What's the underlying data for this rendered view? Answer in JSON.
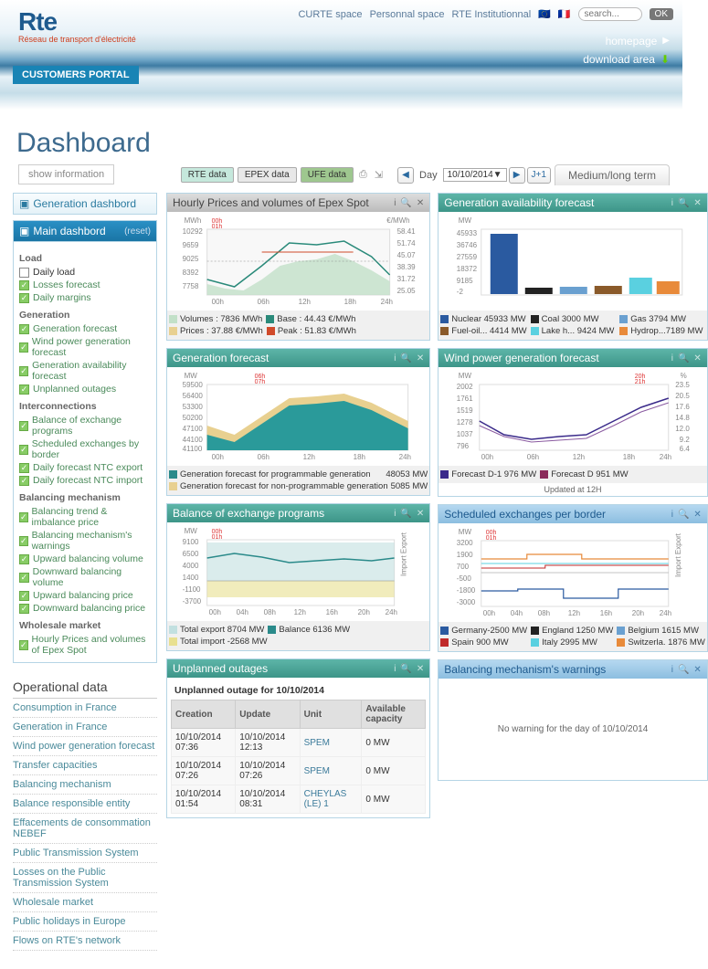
{
  "header": {
    "logo_main": "Rte",
    "logo_sub": "Réseau de transport d'électricité",
    "nav": {
      "curte": "CURTE space",
      "personal": "Personnal space",
      "inst": "RTE Institutionnal",
      "search_ph": "search...",
      "ok": "OK"
    },
    "links": {
      "home": "homepage",
      "download": "download area"
    },
    "portal": "CUSTOMERS PORTAL"
  },
  "title": "Dashboard",
  "show_info": "show information",
  "toolbar": {
    "rte": "RTE data",
    "epex": "EPEX data",
    "ufe": "UFE data",
    "day": "Day",
    "date": "10/10/2014",
    "j1": "J+1",
    "mlt": "Medium/long term"
  },
  "sidebar": {
    "gen_dash": "Generation dashbord",
    "main_dash": "Main dashbord",
    "reset": "(reset)",
    "groups": {
      "load": {
        "title": "Load",
        "items": [
          {
            "label": "Daily load",
            "on": false
          },
          {
            "label": "Losses forecast",
            "on": true
          },
          {
            "label": "Daily margins",
            "on": true
          }
        ]
      },
      "gen": {
        "title": "Generation",
        "items": [
          {
            "label": "Generation forecast",
            "on": true
          },
          {
            "label": "Wind power generation forecast",
            "on": true
          },
          {
            "label": "Generation availability forecast",
            "on": true
          },
          {
            "label": "Unplanned outages",
            "on": true
          }
        ]
      },
      "inter": {
        "title": "Interconnections",
        "items": [
          {
            "label": "Balance of exchange programs",
            "on": true
          },
          {
            "label": "Scheduled exchanges by border",
            "on": true
          },
          {
            "label": "Daily forecast NTC export",
            "on": true
          },
          {
            "label": "Daily forecast NTC import",
            "on": true
          }
        ]
      },
      "bal": {
        "title": "Balancing mechanism",
        "items": [
          {
            "label": "Balancing trend & imbalance price",
            "on": true
          },
          {
            "label": "Balancing mechanism's warnings",
            "on": true
          },
          {
            "label": "Upward balancing volume",
            "on": true
          },
          {
            "label": "Downward balancing volume",
            "on": true
          },
          {
            "label": "Upward balancing price",
            "on": true
          },
          {
            "label": "Downward balancing price",
            "on": true
          }
        ]
      },
      "whole": {
        "title": "Wholesale market",
        "items": [
          {
            "label": "Hourly Prices and volumes of Epex Spot",
            "on": true
          }
        ]
      }
    },
    "op_title": "Operational data",
    "op_links": [
      "Consumption in France",
      "Generation in France",
      "Wind power generation forecast",
      "Transfer capacities",
      "Balancing mechanism",
      "Balance responsible entity",
      "Effacements de consommation NEBEF",
      "Public Transmission System",
      "Losses on the Public Transmission System",
      "Wholesale market",
      "Public holidays in Europe",
      "Flows on RTE's network"
    ]
  },
  "widgets": {
    "epex": {
      "title": "Hourly Prices and volumes of Epex Spot",
      "y_unit_l": "MWh",
      "y_unit_r": "€/MWh",
      "yl": [
        10292,
        9659,
        9025,
        8392,
        7758
      ],
      "yr": [
        58.41,
        51.74,
        45.07,
        38.39,
        31.72,
        25.05
      ],
      "x": [
        "00h",
        "06h",
        "12h",
        "18h",
        "24h"
      ],
      "marker": "00h\n01h",
      "legend": [
        {
          "c": "#c2e0c8",
          "t": "Volumes : 7836 MWh"
        },
        {
          "c": "#2a8a7a",
          "t": "Base :   44.43 €/MWh"
        },
        {
          "c": "#e8d090",
          "t": "Prices :  37.88 €/MWh"
        },
        {
          "c": "#d04a2a",
          "t": "Peak :   51.83 €/MWh"
        }
      ]
    },
    "avail": {
      "title": "Generation availability forecast",
      "y_unit": "MW",
      "y": [
        45933,
        36746,
        27559,
        18372,
        9185,
        "-2"
      ],
      "legend": [
        {
          "c": "#2a5aa0",
          "t": "Nuclear 45933 MW"
        },
        {
          "c": "#222",
          "t": "Coal     3000 MW"
        },
        {
          "c": "#6aa0d0",
          "t": "Gas      3794 MW"
        },
        {
          "c": "#8a5a2a",
          "t": "Fuel-oil... 4414 MW"
        },
        {
          "c": "#5ad0e0",
          "t": "Lake h... 9424 MW"
        },
        {
          "c": "#e88a3a",
          "t": "Hydrop...7189 MW"
        }
      ]
    },
    "genfc": {
      "title": "Generation forecast",
      "y_unit": "MW",
      "marker": "06h\n07h",
      "y": [
        59500,
        56400,
        53300,
        50200,
        47100,
        44100,
        41100
      ],
      "x": [
        "00h",
        "06h",
        "12h",
        "18h",
        "24h"
      ],
      "legend": [
        {
          "c": "#2a8a8a",
          "t": "Generation forecast for programmable generation",
          "v": "48053 MW"
        },
        {
          "c": "#e8d090",
          "t": "Generation forecast for non-programmable generation",
          "v": "5085 MW"
        }
      ]
    },
    "wind": {
      "title": "Wind power generation forecast",
      "y_unit_l": "MW",
      "y_unit_r": "%",
      "marker": "20h\n21h",
      "yl": [
        2002,
        1761,
        1519,
        1278,
        1037,
        796
      ],
      "yr": [
        23.5,
        20.5,
        17.6,
        14.8,
        12.0,
        9.2,
        6.4
      ],
      "x": [
        "00h",
        "06h",
        "12h",
        "18h",
        "24h"
      ],
      "legend": [
        {
          "c": "#3a2a8a",
          "t": "Forecast D-1 976 MW"
        },
        {
          "c": "#8a2a5a",
          "t": "Forecast D 951 MW"
        }
      ],
      "updated": "Updated at 12H"
    },
    "balex": {
      "title": "Balance of exchange programs",
      "y_unit": "MW",
      "marker": "00h\n01h",
      "y": [
        9100,
        6500,
        4000,
        1400,
        -1100,
        -3700
      ],
      "x": [
        "00h",
        "04h",
        "08h",
        "12h",
        "16h",
        "20h",
        "24h"
      ],
      "legend": [
        {
          "c": "#c2e0e0",
          "t": "Total export 8704 MW"
        },
        {
          "c": "#2a8a8a",
          "t": "Balance 6136 MW"
        },
        {
          "c": "#e8e090",
          "t": "Total import -2568 MW"
        }
      ],
      "rlabel": "Import Export"
    },
    "sched": {
      "title": "Scheduled exchanges per border",
      "y_unit": "MW",
      "marker": "00h\n01h",
      "y": [
        3200,
        1900,
        700,
        -500,
        -1800,
        -3000
      ],
      "x": [
        "00h",
        "04h",
        "08h",
        "12h",
        "16h",
        "20h",
        "24h"
      ],
      "legend": [
        {
          "c": "#2a5aa0",
          "t": "Germany-2500 MW"
        },
        {
          "c": "#222",
          "t": "England 1250 MW"
        },
        {
          "c": "#6aa0d0",
          "t": "Belgium  1615 MW"
        },
        {
          "c": "#c02a2a",
          "t": "Spain   900 MW"
        },
        {
          "c": "#5ad0e0",
          "t": "Italy    2995 MW"
        },
        {
          "c": "#e88a3a",
          "t": "Switzerla. 1876 MW"
        }
      ],
      "rlabel": "Import Export"
    },
    "outages": {
      "title": "Unplanned outages",
      "subtitle": "Unplanned outage for 10/10/2014",
      "cols": [
        "Creation",
        "Update",
        "Unit",
        "Available capacity"
      ],
      "rows": [
        [
          "10/10/2014 07:36",
          "10/10/2014 12:13",
          "SPEM",
          "0 MW"
        ],
        [
          "10/10/2014 07:26",
          "10/10/2014 07:26",
          "SPEM",
          "0 MW"
        ],
        [
          "10/10/2014 01:54",
          "10/10/2014 08:31",
          "CHEYLAS (LE) 1",
          "0 MW"
        ]
      ]
    },
    "warnings": {
      "title": "Balancing mechanism's warnings",
      "msg": "No warning for the day of 10/10/2014"
    }
  }
}
